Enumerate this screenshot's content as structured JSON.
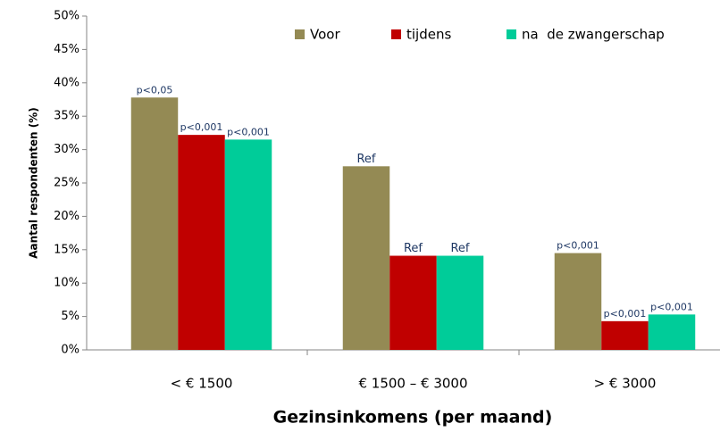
{
  "chart_data": {
    "type": "bar",
    "categories": [
      "< € 1500",
      "€ 1500 – € 3000",
      "> € 3000"
    ],
    "series": [
      {
        "name": "Voor",
        "color": "#948a54",
        "values": [
          37.8,
          27.5,
          14.5
        ],
        "labels": [
          "p<0,05",
          "Ref",
          "p<0,001"
        ]
      },
      {
        "name": "tijdens",
        "color": "#c00000",
        "values": [
          32.2,
          14.1,
          4.3
        ],
        "labels": [
          "p<0,001",
          "Ref",
          "p<0,001"
        ]
      },
      {
        "name": "na  de zwangerschap",
        "color": "#00cc99",
        "values": [
          31.5,
          14.1,
          5.3
        ],
        "labels": [
          "p<0,001",
          "Ref",
          "p<0,001"
        ]
      }
    ],
    "ylim": [
      0,
      50
    ],
    "yticks": [
      {
        "value": 0,
        "label": "0%"
      },
      {
        "value": 5,
        "label": "5%"
      },
      {
        "value": 10,
        "label": "10%"
      },
      {
        "value": 15,
        "label": "15%"
      },
      {
        "value": 20,
        "label": "20%"
      },
      {
        "value": 25,
        "label": "25%"
      },
      {
        "value": 30,
        "label": "30%"
      },
      {
        "value": 35,
        "label": "35%"
      },
      {
        "value": 40,
        "label": "40%"
      },
      {
        "value": 45,
        "label": "45%"
      },
      {
        "value": 50,
        "label": "50%"
      }
    ],
    "ylabel": "Aantal respondenten (%)",
    "xlabel": "Gezinsinkomens (per maand)",
    "grid": false,
    "legend": "top"
  }
}
